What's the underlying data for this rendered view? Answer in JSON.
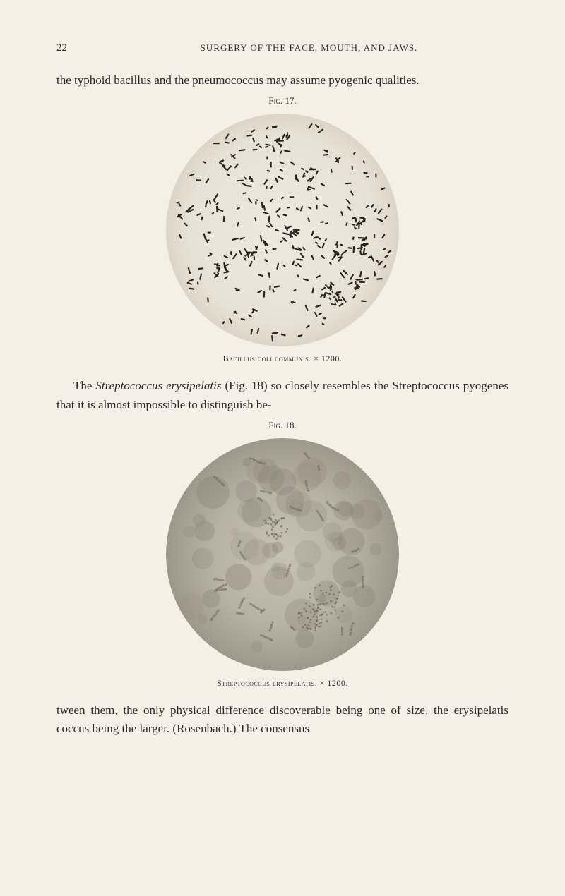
{
  "header": {
    "page_number": "22",
    "running_head": "SURGERY OF THE FACE, MOUTH, AND JAWS."
  },
  "para1_a": "the typhoid bacillus and the pneumococcus may assume pyogenic qualities.",
  "fig17": {
    "label": "Fig. 17.",
    "caption_name": "Bacillus coli communis.",
    "caption_mag": "× 1200.",
    "diameter": 330,
    "bg_color": "#e8e2d6",
    "speck_color": "#2a2520"
  },
  "para2_a": "The ",
  "para2_italic": "Streptococcus erysipelatis",
  "para2_b": " (Fig. 18) so closely resembles the Streptococcus pyogenes that it is almost impossible to distinguish be-",
  "fig18": {
    "label": "Fig. 18.",
    "caption_name": "Streptococcus erysipelatis.",
    "caption_mag": "× 1200.",
    "diameter": 330,
    "bg_color": "#b8b2a4",
    "cluster_color": "#8a8478"
  },
  "para3": "tween them, the only physical difference discoverable being one of size, the erysipelatis coccus being the larger.   (Rosenbach.)   The consensus"
}
